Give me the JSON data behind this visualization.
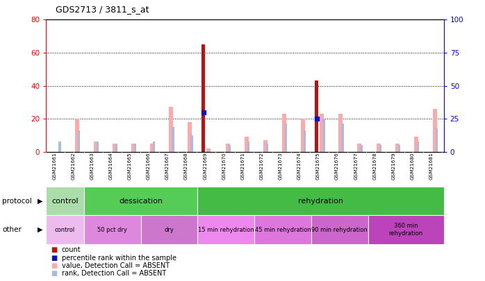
{
  "title": "GDS2713 / 3811_s_at",
  "samples": [
    "GSM21661",
    "GSM21662",
    "GSM21663",
    "GSM21664",
    "GSM21665",
    "GSM21666",
    "GSM21667",
    "GSM21668",
    "GSM21669",
    "GSM21670",
    "GSM21671",
    "GSM21672",
    "GSM21673",
    "GSM21674",
    "GSM21675",
    "GSM21676",
    "GSM21677",
    "GSM21678",
    "GSM21679",
    "GSM21680",
    "GSM21681"
  ],
  "count": [
    0,
    0,
    0,
    0,
    0,
    0,
    0,
    0,
    65,
    0,
    0,
    0,
    0,
    0,
    43,
    0,
    0,
    0,
    0,
    0,
    0
  ],
  "percentile": [
    0,
    0,
    0,
    0,
    0,
    0,
    0,
    0,
    24,
    0,
    0,
    0,
    0,
    0,
    20,
    0,
    0,
    0,
    0,
    0,
    0
  ],
  "value_absent": [
    0,
    20,
    6,
    5,
    5,
    5,
    27,
    18,
    2,
    5,
    9,
    7,
    23,
    20,
    23,
    23,
    5,
    5,
    5,
    9,
    26
  ],
  "rank_absent": [
    6,
    13,
    6,
    5,
    5,
    6,
    15,
    10,
    0,
    4,
    6,
    5,
    17,
    13,
    20,
    17,
    4,
    4,
    4,
    6,
    14
  ],
  "protocol_groups": [
    {
      "label": "control",
      "start": 0,
      "end": 2,
      "color": "#aaddaa"
    },
    {
      "label": "dessication",
      "start": 2,
      "end": 8,
      "color": "#55cc55"
    },
    {
      "label": "rehydration",
      "start": 8,
      "end": 21,
      "color": "#44bb44"
    }
  ],
  "other_groups": [
    {
      "label": "control",
      "start": 0,
      "end": 2,
      "color": "#eebbee"
    },
    {
      "label": "50 pct dry",
      "start": 2,
      "end": 5,
      "color": "#dd88dd"
    },
    {
      "label": "dry",
      "start": 5,
      "end": 8,
      "color": "#cc77cc"
    },
    {
      "label": "15 min rehydration",
      "start": 8,
      "end": 11,
      "color": "#ee88ee"
    },
    {
      "label": "45 min rehydration",
      "start": 11,
      "end": 14,
      "color": "#dd77dd"
    },
    {
      "label": "90 min rehydration",
      "start": 14,
      "end": 17,
      "color": "#cc66cc"
    },
    {
      "label": "360 min\nrehydration",
      "start": 17,
      "end": 21,
      "color": "#bb44bb"
    }
  ],
  "left_ylim": [
    0,
    80
  ],
  "right_ylim": [
    0,
    100
  ],
  "left_yticks": [
    0,
    20,
    40,
    60,
    80
  ],
  "right_yticks": [
    0,
    25,
    50,
    75,
    100
  ],
  "count_color": "#bb1111",
  "percentile_color": "#1111bb",
  "value_absent_color": "#ffaaaa",
  "rank_absent_color": "#aabbdd",
  "xtick_bg": "#c8c8c8",
  "plot_bg": "#ffffff"
}
